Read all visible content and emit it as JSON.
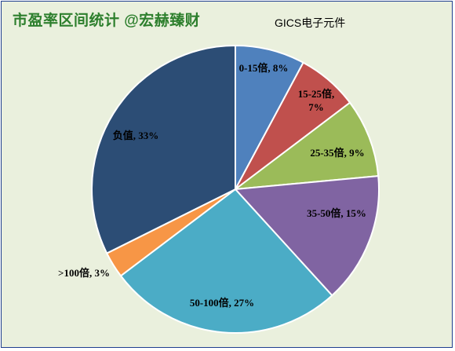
{
  "title": "市盈率区间统计 @宏赫臻财",
  "subtitle": "GICS电子元件",
  "chart_data": {
    "type": "pie",
    "title": "市盈率区间统计 @宏赫臻财",
    "subtitle": "GICS电子元件",
    "start_angle_deg": 0,
    "direction": "clockwise",
    "slices": [
      {
        "label": "0-15倍",
        "value": 8,
        "display": "0-15倍, 8%",
        "color": "#4f81bd"
      },
      {
        "label": "15-25倍",
        "value": 7,
        "display": "15-25倍, 7%",
        "color": "#c0504d"
      },
      {
        "label": "25-35倍",
        "value": 9,
        "display": "25-35倍, 9%",
        "color": "#9bbb59"
      },
      {
        "label": "35-50倍",
        "value": 15,
        "display": "35-50倍, 15%",
        "color": "#8064a2"
      },
      {
        "label": "50-100倍",
        "value": 27,
        "display": "50-100倍, 27%",
        "color": "#4bacc6"
      },
      {
        "label": ">100倍",
        "value": 3,
        "display": ">100倍, 3%",
        "color": "#f79646"
      },
      {
        "label": "负值",
        "value": 33,
        "display": "负值, 33%",
        "color": "#2c4d75"
      }
    ]
  }
}
